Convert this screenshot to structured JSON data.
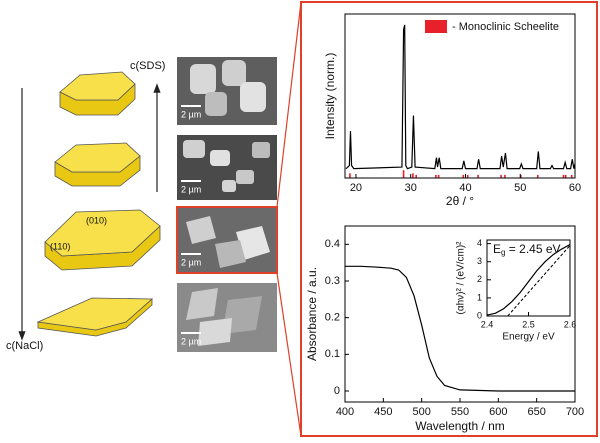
{
  "diagram": {
    "labels": {
      "sds": "c(SDS)",
      "nacl": "c(NaCl)",
      "face_010": "(010)",
      "face_110": "(110)"
    },
    "panels": [
      {
        "scale_bar": "2 µm"
      },
      {
        "scale_bar": "2 µm"
      },
      {
        "scale_bar": "2 µm"
      },
      {
        "scale_bar": "2 µm"
      }
    ]
  },
  "chart_data": [
    {
      "type": "line",
      "xlabel": "2θ / °",
      "ylabel": "Intensity (norm.)",
      "xlim": [
        18,
        60
      ],
      "ylim": [
        0,
        1.05
      ],
      "xticks": [
        20,
        30,
        40,
        50,
        60
      ],
      "yticks": [],
      "legend": "top-right",
      "series": [
        {
          "color": "#000000",
          "x": [
            18.2,
            18.8,
            19.0,
            19.2,
            19.6,
            28.4,
            28.7,
            28.9,
            29.1,
            29.4,
            30.2,
            30.5,
            30.8,
            34.4,
            34.7,
            34.9,
            35.2,
            35.5,
            39.4,
            39.7,
            40.0,
            42.1,
            42.4,
            42.7,
            46.3,
            46.6,
            46.9,
            47.3,
            47.6,
            49.9,
            50.2,
            50.5,
            53.0,
            53.3,
            53.6,
            55.5,
            55.8,
            56.1,
            57.9,
            58.2,
            58.5,
            59.2,
            59.5,
            59.8,
            60.0
          ],
          "values": [
            0.06,
            0.08,
            0.3,
            0.08,
            0.06,
            0.07,
            0.95,
            0.98,
            0.08,
            0.06,
            0.07,
            0.4,
            0.07,
            0.06,
            0.13,
            0.07,
            0.13,
            0.06,
            0.06,
            0.11,
            0.06,
            0.06,
            0.12,
            0.06,
            0.06,
            0.14,
            0.07,
            0.16,
            0.06,
            0.06,
            0.09,
            0.06,
            0.06,
            0.17,
            0.06,
            0.06,
            0.08,
            0.06,
            0.06,
            0.1,
            0.06,
            0.06,
            0.12,
            0.06,
            0.09
          ]
        },
        {
          "name": "- Monoclinic Scheelite",
          "color": "#e8202a",
          "style": "stem",
          "x": [
            18.9,
            28.7,
            30.4,
            31.0,
            34.6,
            35.1,
            39.6,
            40.4,
            42.3,
            46.5,
            47.2,
            50.1,
            53.2,
            57.9,
            58.3,
            59.4
          ],
          "values": [
            0.03,
            0.05,
            0.03,
            0.02,
            0.02,
            0.02,
            0.02,
            0.02,
            0.02,
            0.02,
            0.02,
            0.02,
            0.02,
            0.02,
            0.02,
            0.02
          ]
        }
      ]
    },
    {
      "type": "line",
      "xlabel": "Wavelength / nm",
      "ylabel": "Absorbance / a.u.",
      "xlim": [
        400,
        700
      ],
      "ylim": [
        -0.03,
        0.45
      ],
      "xticks": [
        400,
        450,
        500,
        550,
        600,
        650,
        700
      ],
      "yticks": [
        0,
        0.1,
        0.2,
        0.3,
        0.4
      ],
      "series": [
        {
          "color": "#000000",
          "x": [
            400,
            420,
            440,
            460,
            470,
            480,
            490,
            500,
            510,
            520,
            530,
            550,
            600,
            650,
            700
          ],
          "values": [
            0.34,
            0.34,
            0.338,
            0.335,
            0.33,
            0.31,
            0.26,
            0.18,
            0.09,
            0.04,
            0.015,
            0.003,
            0,
            0,
            0
          ]
        }
      ]
    },
    {
      "type": "line",
      "xlabel": "Energy / eV",
      "ylabel": "(αhν)² / (eV/cm)²",
      "annotation": {
        "symbol": "E",
        "subscript": "g",
        "text": " = 2.45 eV"
      },
      "xlim": [
        2.4,
        2.6
      ],
      "ylim": [
        0,
        4.2
      ],
      "xticks": [
        2.4,
        2.5,
        2.6
      ],
      "yticks": [
        0,
        1,
        2,
        3,
        4
      ],
      "series": [
        {
          "color": "#000000",
          "x": [
            2.4,
            2.42,
            2.44,
            2.46,
            2.48,
            2.5,
            2.52,
            2.54,
            2.56,
            2.58,
            2.6
          ],
          "values": [
            0.05,
            0.15,
            0.4,
            0.8,
            1.3,
            1.9,
            2.5,
            3.0,
            3.4,
            3.7,
            3.95
          ]
        },
        {
          "color": "#000000",
          "dash": true,
          "x": [
            2.45,
            2.6
          ],
          "values": [
            0,
            3.9
          ]
        }
      ]
    }
  ]
}
